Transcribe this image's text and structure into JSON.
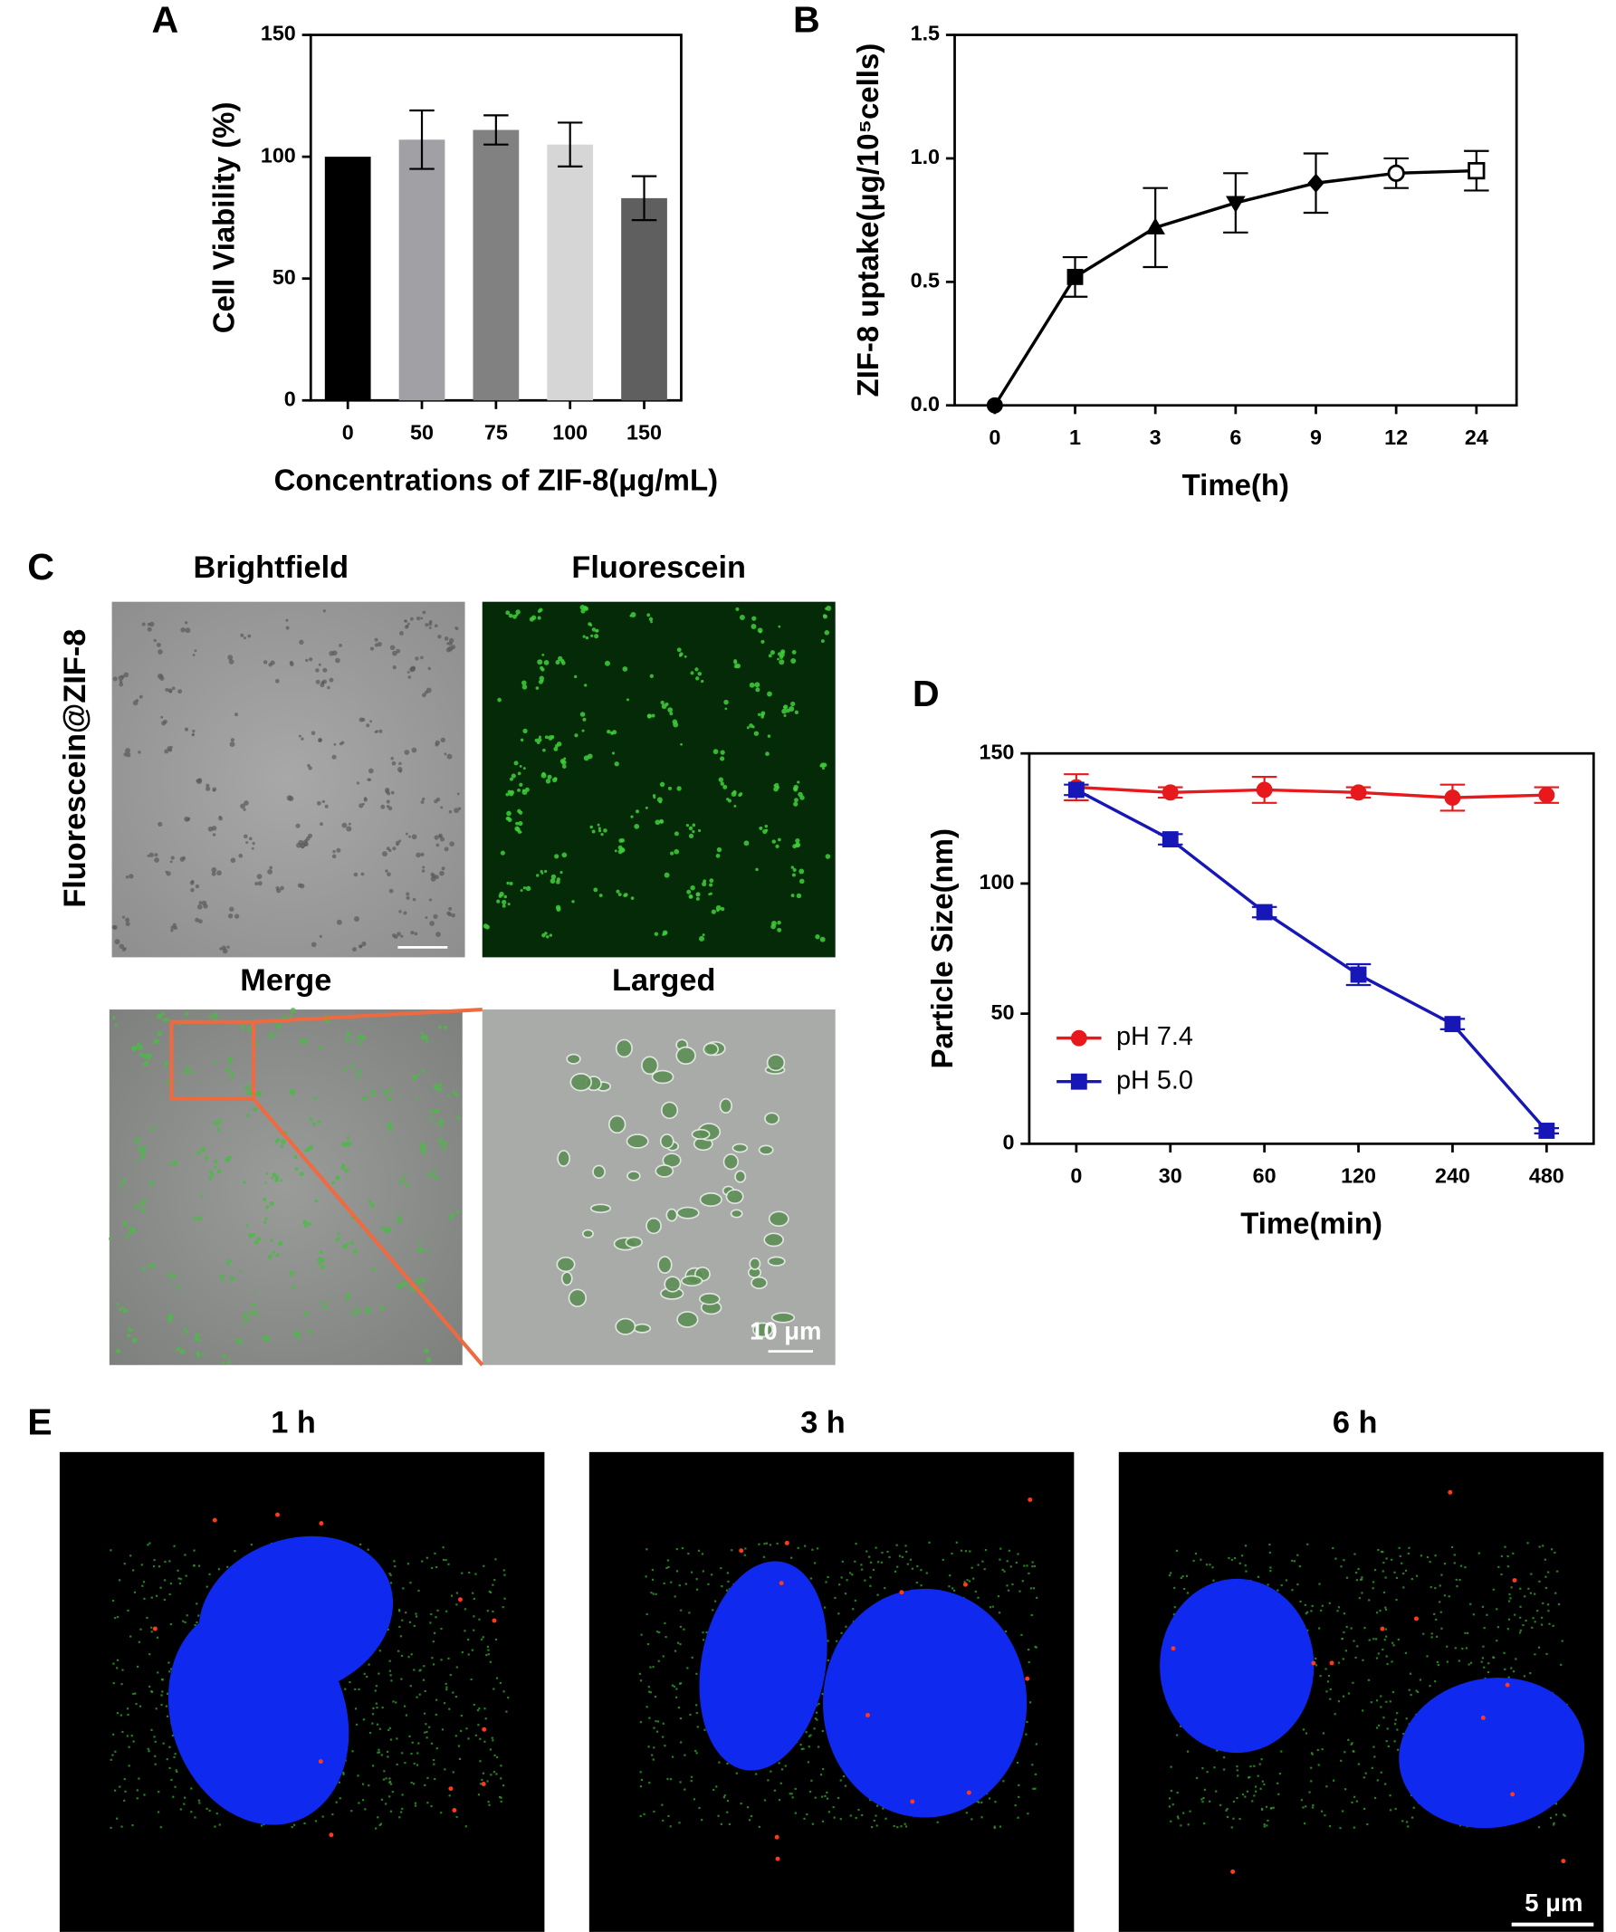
{
  "chart_data": [
    {
      "type": "bar",
      "panel": "A",
      "categories": [
        "0",
        "50",
        "75",
        "100",
        "150"
      ],
      "values": [
        100,
        107,
        111,
        105,
        83
      ],
      "errors": [
        0,
        12,
        6,
        9,
        9
      ],
      "colors": [
        "#000000",
        "#a1a1a5",
        "#818181",
        "#d6d6d6",
        "#5f5f5f"
      ],
      "ylim": [
        0,
        150
      ],
      "yticks": [
        0,
        50,
        100,
        150
      ],
      "grid": false,
      "xlabel": "Concentrations of ZIF-8(μg/mL)",
      "ylabel": "Cell Viability (%)"
    },
    {
      "type": "line",
      "panel": "B",
      "categories": [
        "0",
        "1",
        "3",
        "6",
        "9",
        "12",
        "24"
      ],
      "values": [
        0,
        0.52,
        0.72,
        0.82,
        0.9,
        0.94,
        0.95
      ],
      "errors": [
        0,
        0.08,
        0.16,
        0.12,
        0.12,
        0.06,
        0.08
      ],
      "markers": [
        "circle",
        "square",
        "triangle",
        "triangle-down",
        "diamond",
        "open-circle",
        "open-square"
      ],
      "color": "#000000",
      "ylim": [
        0,
        1.5
      ],
      "yticks": [
        {
          "value": 0,
          "label": "0.0"
        },
        {
          "value": 0.5,
          "label": "0.5"
        },
        {
          "value": 1,
          "label": "1.0"
        },
        {
          "value": 1.5,
          "label": "1.5"
        }
      ],
      "grid": false,
      "xlabel": "Time(h)",
      "ylabel": "ZIF-8 uptake(μg/10⁵cells)"
    },
    {
      "type": "line",
      "panel": "D",
      "categories": [
        "0",
        "30",
        "60",
        "120",
        "240",
        "480"
      ],
      "series": [
        {
          "name": "pH 7.4",
          "color": "#e8191c",
          "marker": "circle",
          "values": [
            137,
            135,
            136,
            135,
            133,
            134
          ],
          "errors": [
            5,
            2,
            5,
            2,
            5,
            3
          ]
        },
        {
          "name": "pH 5.0",
          "color": "#1717b8",
          "marker": "square",
          "values": [
            136,
            117,
            89,
            65,
            46,
            5
          ],
          "errors": [
            2,
            2,
            2,
            4,
            2,
            1
          ]
        }
      ],
      "ylim": [
        0,
        150
      ],
      "yticks": [
        0,
        50,
        100,
        150
      ],
      "grid": false,
      "legend": "lower left",
      "xlabel": "Time(min)",
      "ylabel": "Particle Size(nm)"
    }
  ],
  "panel_c": {
    "label": "C",
    "row_label": "Fluorescein@ZIF-8",
    "titles": [
      "Brightfield",
      "Fluorescein",
      "Merge",
      "Larged"
    ],
    "scale_bar": "10 μm"
  },
  "panel_e": {
    "label": "E",
    "titles": [
      "1 h",
      "3 h",
      "6 h"
    ],
    "scale_bar": "5 μm"
  }
}
